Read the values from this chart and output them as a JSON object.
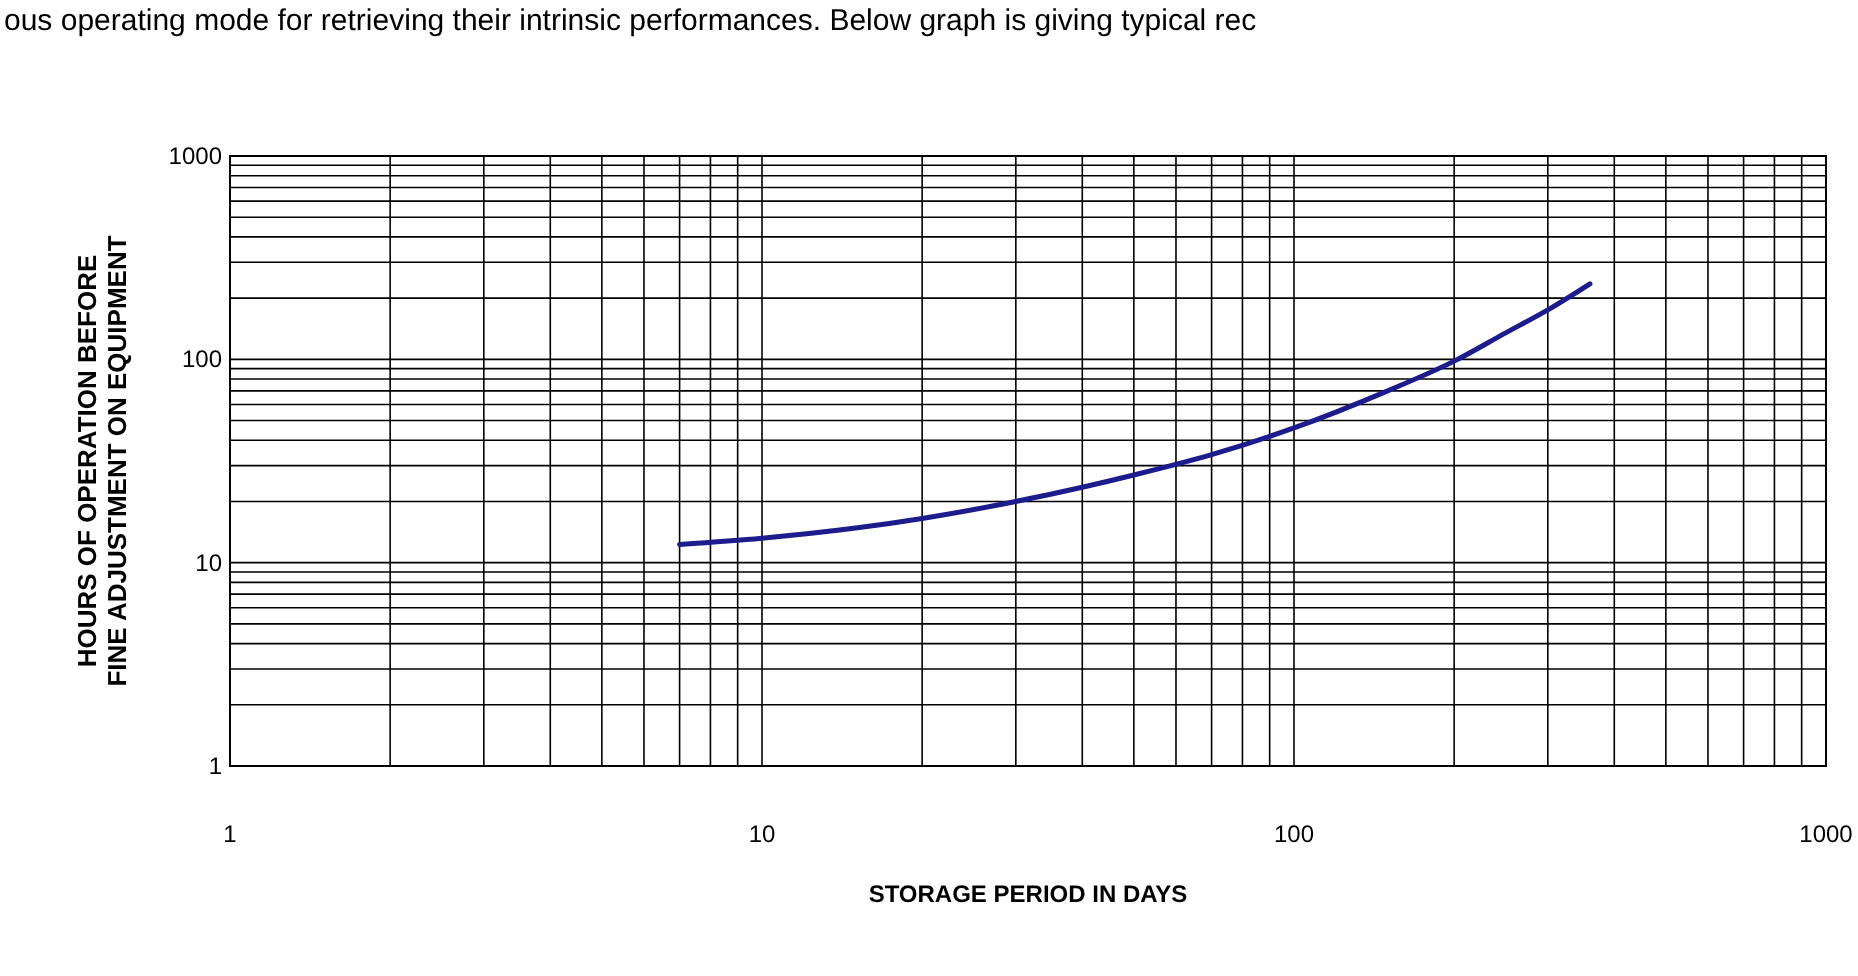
{
  "chart_data": {
    "type": "line",
    "xlabel": "STORAGE PERIOD IN DAYS",
    "ylabel": "HOURS OF OPERATION BEFORE\nFINE ADJUSTMENT ON EQUIPMENT",
    "annotations": [
      "ous operating mode for retrieving their intrinsic performances. Below graph is giving typical rec"
    ],
    "log": "xy",
    "grid": true,
    "xlim": [
      1,
      1000
    ],
    "ylim": [
      1,
      1000
    ],
    "xticks": [
      1,
      {
        "value": 2,
        "label": null
      },
      {
        "value": 3,
        "label": null
      },
      {
        "value": 4,
        "label": null
      },
      {
        "value": 5,
        "label": null
      },
      {
        "value": 6,
        "label": null
      },
      {
        "value": 7,
        "label": null
      },
      {
        "value": 8,
        "label": null
      },
      {
        "value": 9,
        "label": null
      },
      10,
      {
        "value": 20,
        "label": null
      },
      {
        "value": 30,
        "label": null
      },
      {
        "value": 40,
        "label": null
      },
      {
        "value": 50,
        "label": null
      },
      {
        "value": 60,
        "label": null
      },
      {
        "value": 70,
        "label": null
      },
      {
        "value": 80,
        "label": null
      },
      {
        "value": 90,
        "label": null
      },
      100,
      {
        "value": 200,
        "label": null
      },
      {
        "value": 300,
        "label": null
      },
      {
        "value": 400,
        "label": null
      },
      {
        "value": 500,
        "label": null
      },
      {
        "value": 600,
        "label": null
      },
      {
        "value": 700,
        "label": null
      },
      {
        "value": 800,
        "label": null
      },
      {
        "value": 900,
        "label": null
      },
      1000
    ],
    "yticks": [
      1,
      {
        "value": 2,
        "label": null
      },
      {
        "value": 3,
        "label": null
      },
      {
        "value": 4,
        "label": null
      },
      {
        "value": 5,
        "label": null
      },
      {
        "value": 6,
        "label": null
      },
      {
        "value": 7,
        "label": null
      },
      {
        "value": 8,
        "label": null
      },
      {
        "value": 9,
        "label": null
      },
      10,
      {
        "value": 20,
        "label": null
      },
      {
        "value": 30,
        "label": null
      },
      {
        "value": 40,
        "label": null
      },
      {
        "value": 50,
        "label": null
      },
      {
        "value": 60,
        "label": null
      },
      {
        "value": 70,
        "label": null
      },
      {
        "value": 80,
        "label": null
      },
      {
        "value": 90,
        "label": null
      },
      100,
      {
        "value": 200,
        "label": null
      },
      {
        "value": 300,
        "label": null
      },
      {
        "value": 400,
        "label": null
      },
      {
        "value": 500,
        "label": null
      },
      {
        "value": 600,
        "label": null
      },
      {
        "value": 700,
        "label": null
      },
      {
        "value": 800,
        "label": null
      },
      {
        "value": 900,
        "label": null
      },
      1000
    ],
    "series": [
      {
        "color": "#1c1c8c",
        "x": [
          7,
          10,
          15,
          20,
          30,
          40,
          50,
          70,
          100,
          150,
          200,
          250,
          300,
          360
        ],
        "values": [
          12.3,
          13.2,
          14.8,
          16.5,
          20,
          23.5,
          27,
          34,
          46,
          70,
          98,
          135,
          175,
          235
        ]
      }
    ]
  }
}
